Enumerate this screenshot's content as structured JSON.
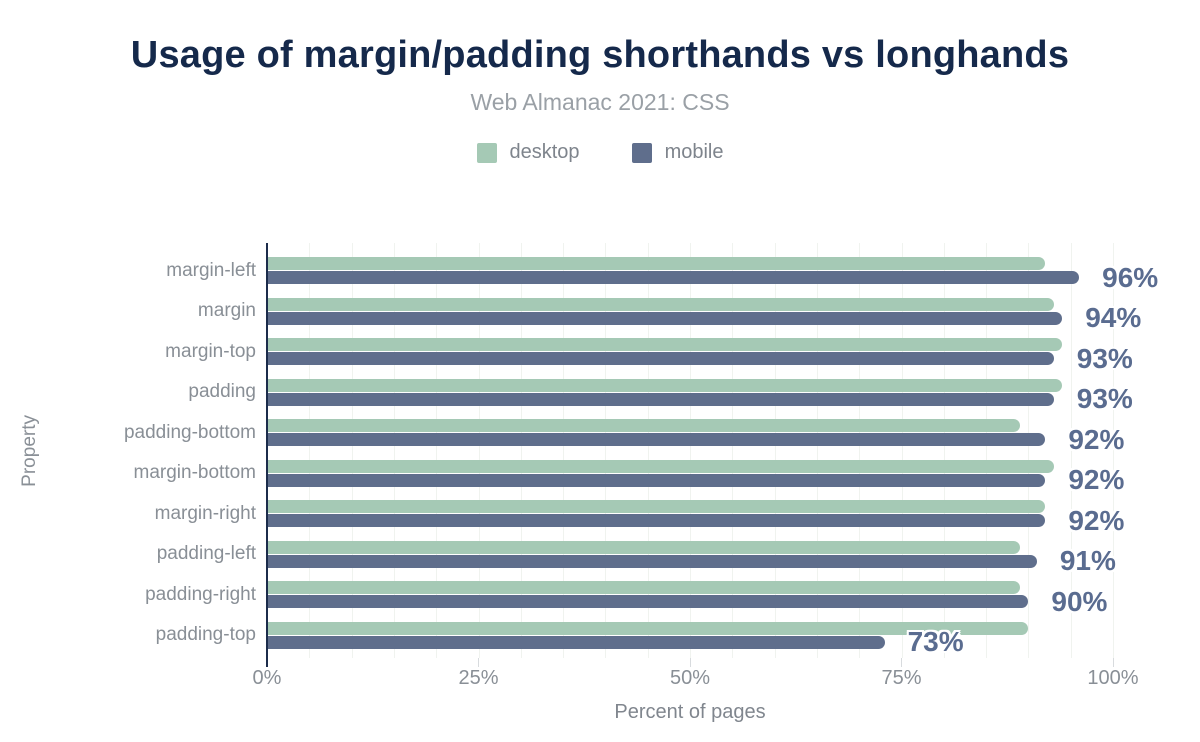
{
  "header": {
    "title": "Usage of margin/padding shorthands vs longhands",
    "subtitle": "Web Almanac 2021: CSS"
  },
  "colors": {
    "desktop": "#a5c9b5",
    "mobile": "#5f6e8c",
    "title": "#15294b",
    "value_label": "#5a6c90",
    "axis_line": "#1c2c4b",
    "gridline": "#f0f3ef",
    "muted_text": "#898f96"
  },
  "chart_data": {
    "type": "bar",
    "orientation": "horizontal",
    "title": "Usage of margin/padding shorthands vs longhands",
    "subtitle": "Web Almanac 2021: CSS",
    "xlabel": "Percent of pages",
    "ylabel": "Property",
    "xlim": [
      0,
      100
    ],
    "x_ticks": [
      "0%",
      "25%",
      "50%",
      "75%",
      "100%"
    ],
    "x_tick_values": [
      0,
      25,
      50,
      75,
      100
    ],
    "grid_interval": 5,
    "grid": true,
    "legend_position": "top",
    "categories": [
      "margin-left",
      "margin",
      "margin-top",
      "padding",
      "padding-bottom",
      "margin-bottom",
      "margin-right",
      "padding-left",
      "padding-right",
      "padding-top"
    ],
    "series": [
      {
        "name": "desktop",
        "color": "#a5c9b5",
        "values": [
          92,
          93,
          94,
          94,
          89,
          93,
          92,
          89,
          89,
          90
        ]
      },
      {
        "name": "mobile",
        "color": "#5f6e8c",
        "values": [
          96,
          94,
          93,
          93,
          92,
          92,
          92,
          91,
          90,
          73
        ]
      }
    ],
    "data_labels": {
      "series": "mobile",
      "values": [
        "96%",
        "94%",
        "93%",
        "93%",
        "92%",
        "92%",
        "92%",
        "91%",
        "90%",
        "73%"
      ]
    }
  }
}
